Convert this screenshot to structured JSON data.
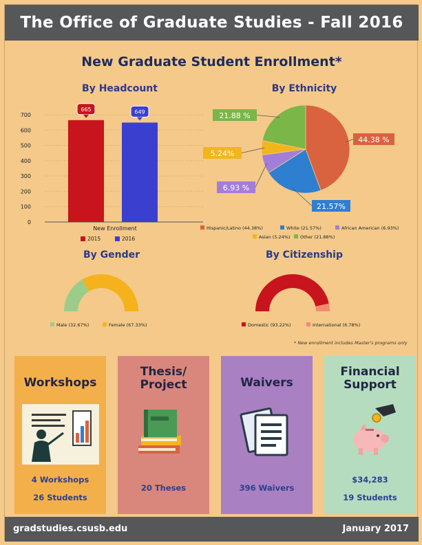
{
  "header": {
    "title": "The Office of Graduate Studies - Fall 2016"
  },
  "subtitle": "New Graduate Student Enrollment*",
  "colors": {
    "red": "#c8141c",
    "blue": "#3b3fcf",
    "hispanic": "#d9633f",
    "white": "#2f7fd1",
    "african_american": "#a37ed9",
    "asian": "#f2b51c",
    "other": "#7ab648",
    "male": "#9ccc8a",
    "female": "#f5b21d",
    "domestic": "#c8141c",
    "international": "#f08c70"
  },
  "chart_data": [
    {
      "type": "bar",
      "title": "By Headcount",
      "categories": [
        "New Enrollment"
      ],
      "series": [
        {
          "name": "2015",
          "values": [
            665
          ]
        },
        {
          "name": "2016",
          "values": [
            649
          ]
        }
      ],
      "data_labels": [
        "665",
        "649"
      ],
      "yticks": [
        "0",
        "100",
        "200",
        "300",
        "400",
        "500",
        "600",
        "700"
      ],
      "ylim": [
        0,
        700
      ],
      "xlabel": "New Enrollment",
      "legend": "bottom"
    },
    {
      "type": "pie",
      "title": "By Ethnicity",
      "labels": [
        "Hispanic/Latino (44.38%)",
        "White (21.57%)",
        "African American (6.93%)",
        "Asian (5.24%)",
        "Other (21.88%)"
      ],
      "values": [
        44.38,
        21.57,
        6.93,
        5.24,
        21.88
      ],
      "slice_labels": [
        "44.38 %",
        "21.57%",
        "6.93 %",
        "5.24%",
        "21.88 %"
      ],
      "legend": "bottom"
    },
    {
      "type": "pie",
      "title": "By Gender",
      "labels": [
        "Male (32.67%)",
        "Female (67.33%)"
      ],
      "values": [
        32.67,
        67.33
      ],
      "style": "half-donut",
      "legend": "bottom"
    },
    {
      "type": "pie",
      "title": "By Citizenship",
      "labels": [
        "Domestic (93.22%)",
        "International (6.78%)"
      ],
      "values": [
        93.22,
        6.78
      ],
      "style": "half-donut",
      "legend": "bottom"
    }
  ],
  "note": "* New enrollment includes Master's programs only",
  "cards": [
    {
      "title": "Workshops",
      "lines": [
        "4 Workshops",
        "26 Students"
      ],
      "icon": "presentation-icon"
    },
    {
      "title": "Thesis/ Project",
      "lines": [
        "20 Theses"
      ],
      "icon": "books-icon"
    },
    {
      "title": "Waivers",
      "lines": [
        "396 Waivers"
      ],
      "icon": "documents-icon"
    },
    {
      "title": "Financial Support",
      "lines": [
        "$34,283",
        "19 Students"
      ],
      "icon": "piggy-bank-icon"
    }
  ],
  "footer": {
    "left": "gradstudies.csusb.edu",
    "right": "January 2017"
  }
}
